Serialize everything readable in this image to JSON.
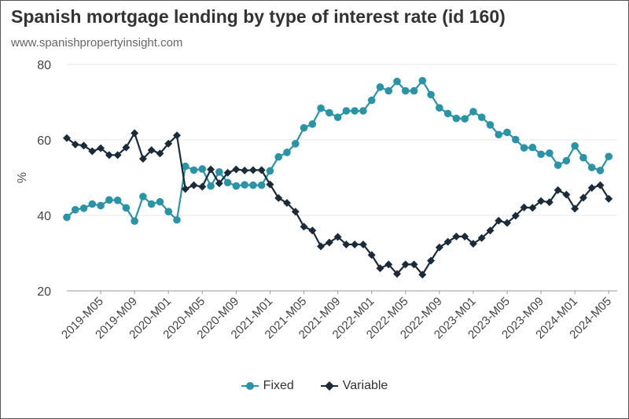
{
  "header": {
    "title": "Spanish mortgage lending by type of interest rate (id 160)",
    "subtitle": "www.spanishpropertyinsight.com"
  },
  "legend": {
    "items": [
      {
        "label": "Fixed",
        "color": "#2a93a6",
        "marker": "circle"
      },
      {
        "label": "Variable",
        "color": "#1c2b3a",
        "marker": "diamond"
      }
    ]
  },
  "chart_data": {
    "type": "line",
    "title": "Spanish mortgage lending by type of interest rate (id 160)",
    "xlabel": "",
    "ylabel": "%",
    "ylim": [
      20,
      80
    ],
    "yticks": [
      20,
      40,
      60,
      80
    ],
    "grid": true,
    "legend_position": "bottom",
    "x": [
      "2019-M01",
      "2019-M02",
      "2019-M03",
      "2019-M04",
      "2019-M05",
      "2019-M06",
      "2019-M07",
      "2019-M08",
      "2019-M09",
      "2019-M10",
      "2019-M11",
      "2019-M12",
      "2020-M01",
      "2020-M02",
      "2020-M03",
      "2020-M04",
      "2020-M05",
      "2020-M06",
      "2020-M07",
      "2020-M08",
      "2020-M09",
      "2020-M10",
      "2020-M11",
      "2020-M12",
      "2021-M01",
      "2021-M02",
      "2021-M03",
      "2021-M04",
      "2021-M05",
      "2021-M06",
      "2021-M07",
      "2021-M08",
      "2021-M09",
      "2021-M10",
      "2021-M11",
      "2021-M12",
      "2022-M01",
      "2022-M02",
      "2022-M03",
      "2022-M04",
      "2022-M05",
      "2022-M06",
      "2022-M07",
      "2022-M08",
      "2022-M09",
      "2022-M10",
      "2022-M11",
      "2022-M12",
      "2023-M01",
      "2023-M02",
      "2023-M03",
      "2023-M04",
      "2023-M05",
      "2023-M06",
      "2023-M07",
      "2023-M08",
      "2023-M09",
      "2023-M10",
      "2023-M11",
      "2023-M12",
      "2024-M01",
      "2024-M02",
      "2024-M03",
      "2024-M04",
      "2024-M05",
      "2024-M06"
    ],
    "xtick_labels": [
      "2019-M05",
      "2019-M09",
      "2020-M01",
      "2020-M05",
      "2020-M09",
      "2021-M01",
      "2021-M05",
      "2021-M09",
      "2022-M01",
      "2022-M05",
      "2022-M09",
      "2023-M01",
      "2023-M05",
      "2023-M09",
      "2024-M01",
      "2024-M05"
    ],
    "series": [
      {
        "name": "Fixed",
        "color": "#2a93a6",
        "values": [
          39.5,
          41.5,
          41.9,
          43.0,
          42.6,
          44.1,
          44.0,
          42.0,
          38.5,
          45.0,
          43.0,
          43.6,
          41.0,
          38.8,
          53.0,
          52.0,
          52.3,
          47.8,
          51.5,
          48.7,
          47.8,
          48.1,
          48.0,
          48.0,
          51.8,
          55.5,
          56.7,
          59.0,
          63.2,
          64.2,
          68.4,
          67.2,
          66.0,
          67.7,
          67.7,
          67.7,
          70.5,
          74.0,
          73.0,
          75.5,
          73.0,
          73.0,
          75.7,
          72.0,
          68.5,
          67.0,
          65.7,
          65.6,
          67.5,
          66.0,
          64.0,
          61.4,
          62.0,
          60.1,
          57.9,
          58.0,
          56.2,
          56.5,
          53.3,
          54.5,
          58.4,
          55.3,
          52.7,
          51.9,
          55.6,
          null
        ]
      },
      {
        "name": "Variable",
        "color": "#1c2b3a",
        "values": [
          60.5,
          58.8,
          58.5,
          57.0,
          57.8,
          56.0,
          56.0,
          58.0,
          61.8,
          55.0,
          57.3,
          56.4,
          59.0,
          61.2,
          47.0,
          48.0,
          47.6,
          52.2,
          48.5,
          51.3,
          52.2,
          51.9,
          52.0,
          52.0,
          48.2,
          44.6,
          43.3,
          41.0,
          37.0,
          36.0,
          31.8,
          32.8,
          34.3,
          32.3,
          32.3,
          32.3,
          29.5,
          26.0,
          27.0,
          24.5,
          27.0,
          27.0,
          24.3,
          28.0,
          31.5,
          33.0,
          34.4,
          34.4,
          32.5,
          34.0,
          36.0,
          38.6,
          38.0,
          39.9,
          42.1,
          42.0,
          43.8,
          43.5,
          46.7,
          45.5,
          41.8,
          44.7,
          47.3,
          48.0,
          44.4,
          null
        ]
      }
    ]
  }
}
